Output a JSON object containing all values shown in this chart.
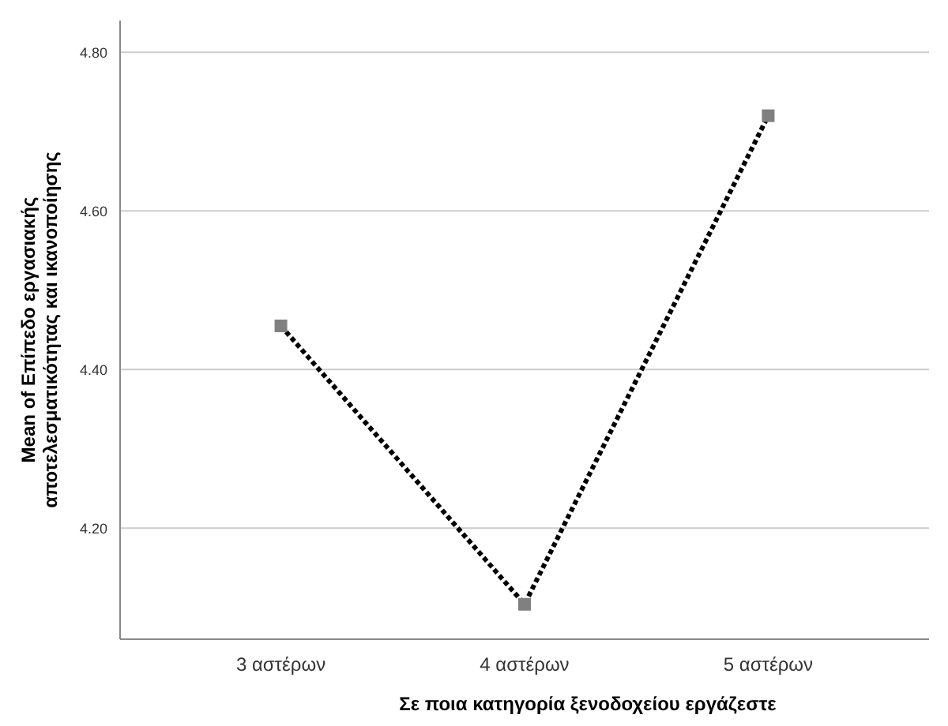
{
  "chart_data": {
    "type": "line",
    "categories": [
      "3 αστέρων",
      "4 αστέρων",
      "5 αστέρων"
    ],
    "series": [
      {
        "color": "#000000",
        "values": [
          4.455,
          4.104,
          4.72
        ]
      }
    ],
    "xlabel": "Σε ποια κατηγορία ξενοδοχείου εργάζεστε",
    "ylabel": "Mean of Επίπεδο εργασιακής αποτελεσματικότητας και ικανοποίησης",
    "ylim": [
      4.06,
      4.84
    ],
    "yticks": [
      {
        "value": 4.2,
        "label": "4.20"
      },
      {
        "value": 4.4,
        "label": "4.40"
      },
      {
        "value": 4.6,
        "label": "4.60"
      },
      {
        "value": 4.8,
        "label": "4.80"
      }
    ],
    "grid": "y",
    "marker": "square",
    "line_style": "dotted"
  }
}
